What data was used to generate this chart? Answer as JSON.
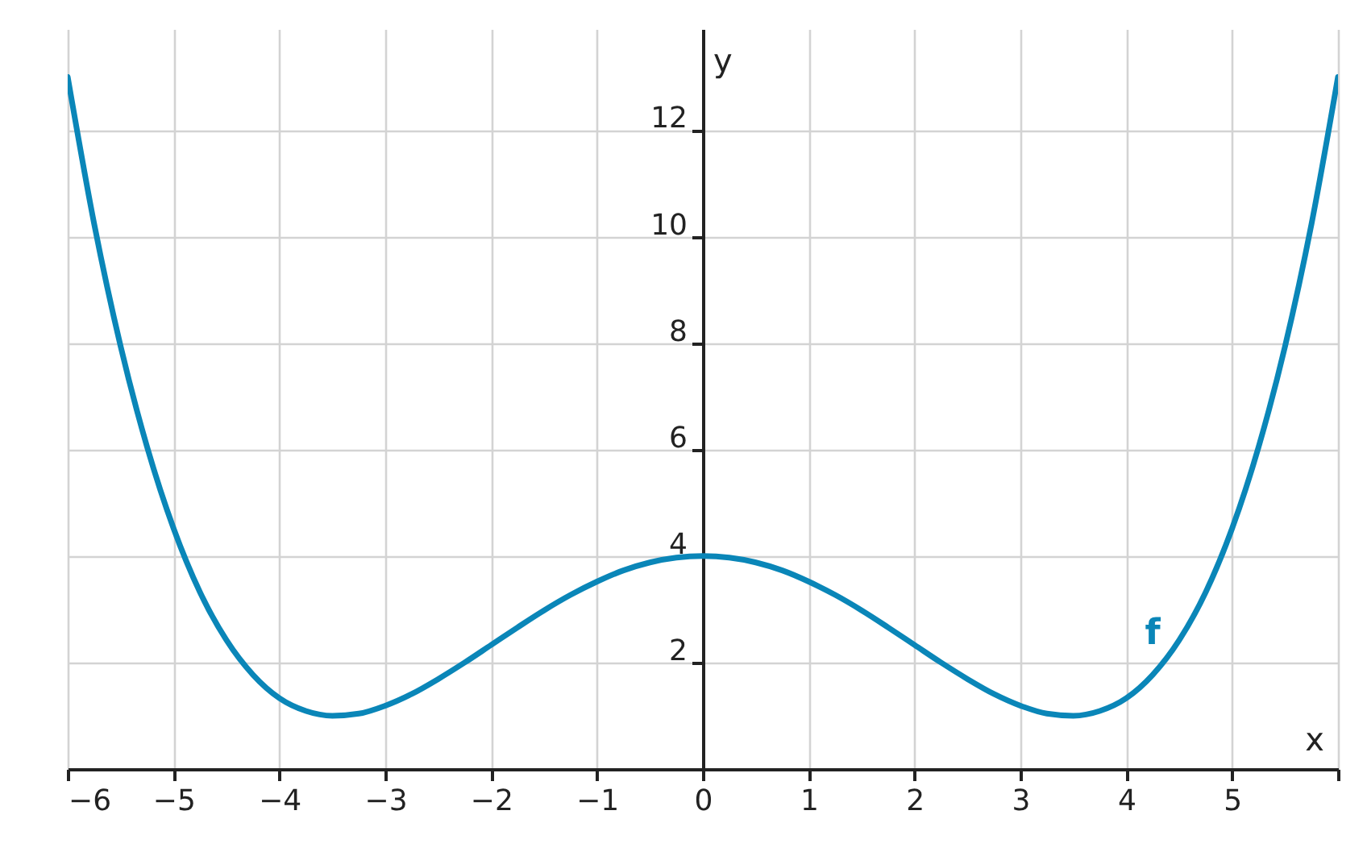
{
  "chart_data": {
    "type": "line",
    "xlabel": "x",
    "ylabel": "y",
    "x": [
      -6,
      -5.75,
      -5.5,
      -5.25,
      -5,
      -4.75,
      -4.5,
      -4.25,
      -4,
      -3.75,
      -3.5,
      -3.25,
      -3,
      -2.75,
      -2.5,
      -2.25,
      -2,
      -1.75,
      -1.5,
      -1.25,
      -1,
      -0.75,
      -0.5,
      -0.25,
      0,
      0.25,
      0.5,
      0.75,
      1,
      1.25,
      1.5,
      1.75,
      2,
      2.25,
      2.5,
      2.75,
      3,
      3.25,
      3.5,
      3.75,
      4,
      4.25,
      4.5,
      4.75,
      5,
      5.25,
      5.5,
      5.75,
      6
    ],
    "series": [
      {
        "name": "f",
        "color": "#0a86b8",
        "values": [
          13,
          10.24,
          7.94,
          6.05,
          4.52,
          3.32,
          2.42,
          1.77,
          1.33,
          1.09,
          1.0,
          1.04,
          1.19,
          1.41,
          1.69,
          2.0,
          2.33,
          2.66,
          2.98,
          3.27,
          3.52,
          3.73,
          3.88,
          3.97,
          4.0,
          3.97,
          3.88,
          3.73,
          3.52,
          3.27,
          2.98,
          2.66,
          2.33,
          2.0,
          1.69,
          1.41,
          1.19,
          1.04,
          1.0,
          1.09,
          1.33,
          1.77,
          2.42,
          3.32,
          4.52,
          6.05,
          7.94,
          10.24,
          13
        ]
      }
    ],
    "xlim": [
      -6,
      6
    ],
    "ylim": [
      0,
      13.9
    ],
    "xticks": [
      -6,
      -5,
      -4,
      -3,
      -2,
      -1,
      0,
      1,
      2,
      3,
      4,
      5,
      {
        "value": 6,
        "label": null
      }
    ],
    "yticks": [
      2,
      4,
      6,
      8,
      10,
      12
    ],
    "grid": true,
    "marker": "none",
    "line_style": "solid"
  }
}
